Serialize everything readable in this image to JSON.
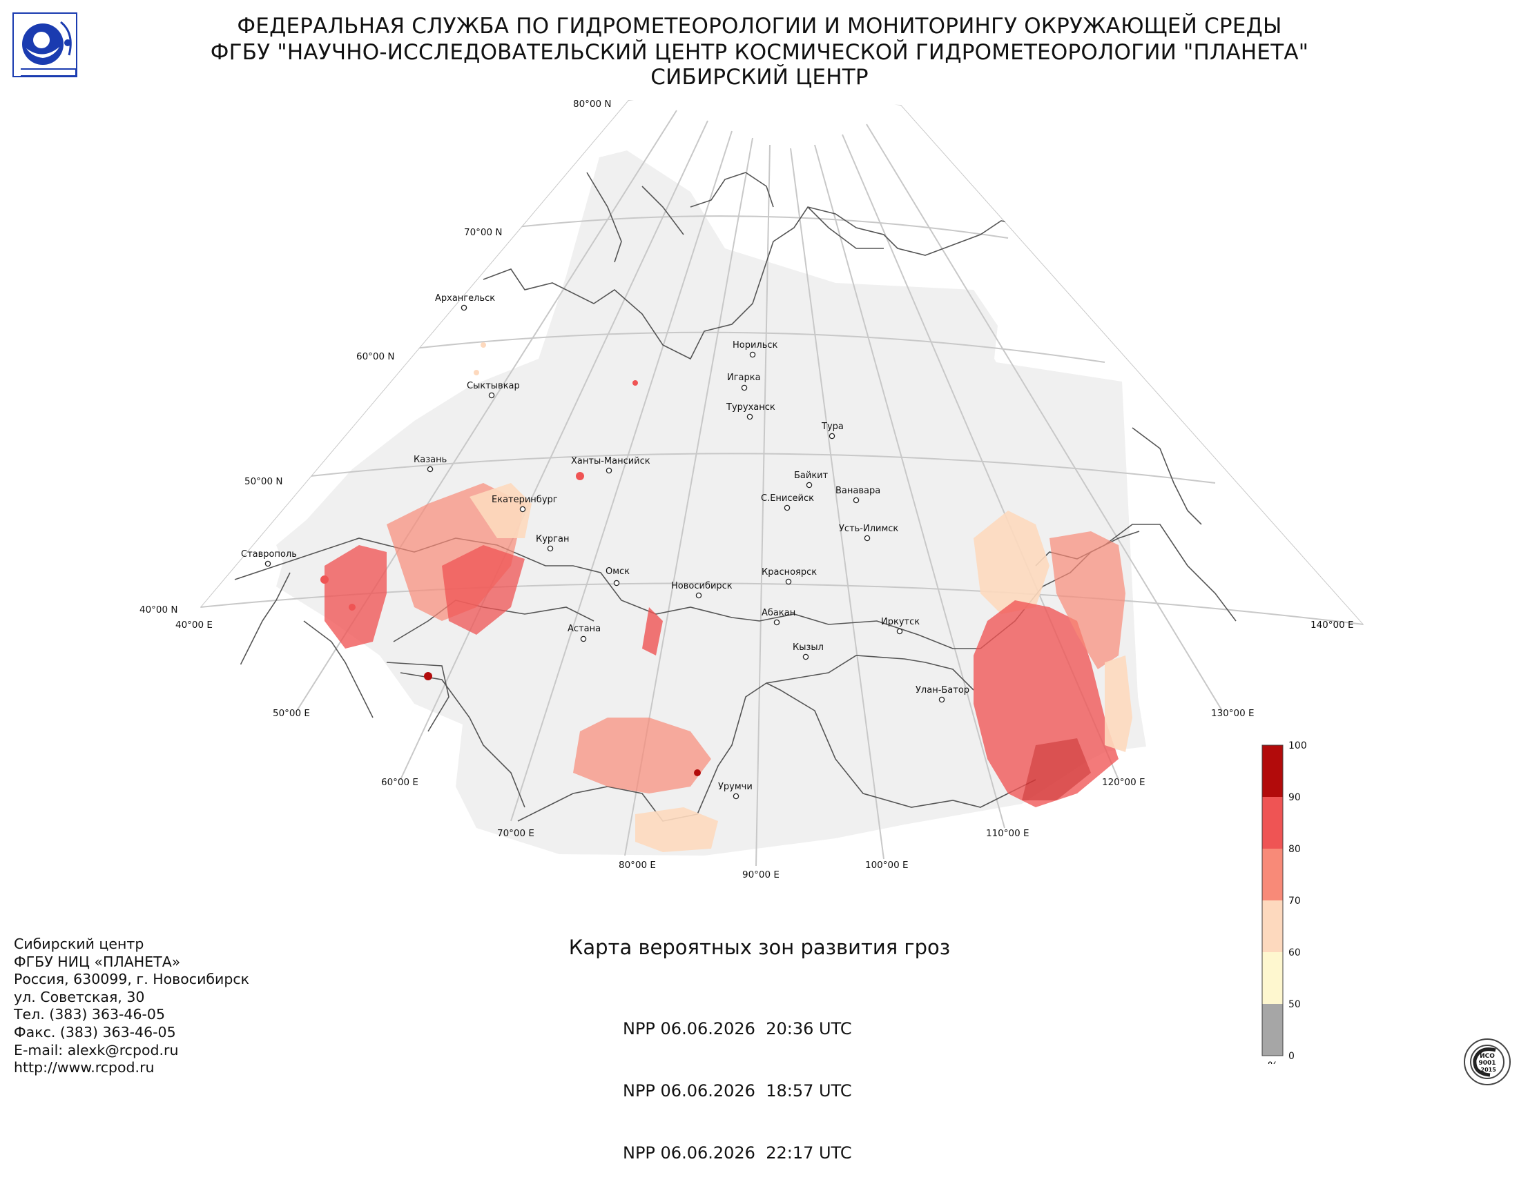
{
  "header": {
    "line1": "ФЕДЕРАЛЬНАЯ СЛУЖБА ПО ГИДРОМЕТЕОРОЛОГИИ И МОНИТОРИНГУ ОКРУЖАЮЩЕЙ СРЕДЫ",
    "line2": "ФГБУ \"НАУЧНО-ИССЛЕДОВАТЕЛЬСКИЙ ЦЕНТР КОСМИЧЕСКОЙ ГИДРОМЕТЕОРОЛОГИИ \"ПЛАНЕТА\"",
    "line3": "СИБИРСКИЙ ЦЕНТР"
  },
  "logo": {
    "icon": "roshydromet-logo",
    "color": "#1a3bb0"
  },
  "map": {
    "latitude_labels": [
      "80°00 N",
      "70°00 N",
      "60°00 N",
      "50°00 N",
      "40°00 N"
    ],
    "longitude_labels": [
      "40°00 E",
      "50°00 E",
      "60°00 E",
      "70°00 E",
      "80°00 E",
      "90°00 E",
      "100°00 E",
      "110°00 E",
      "120°00 E",
      "130°00 E",
      "140°00 E"
    ],
    "cities": [
      {
        "name": "Архангельск"
      },
      {
        "name": "Сыктывкар"
      },
      {
        "name": "Казань"
      },
      {
        "name": "Екатеринбург"
      },
      {
        "name": "Ставрополь"
      },
      {
        "name": "Курган"
      },
      {
        "name": "Ханты-Мансийск"
      },
      {
        "name": "Омск"
      },
      {
        "name": "Астана"
      },
      {
        "name": "Новосибирск"
      },
      {
        "name": "Норильск"
      },
      {
        "name": "Игарка"
      },
      {
        "name": "Туруханск"
      },
      {
        "name": "Тура"
      },
      {
        "name": "Байкит"
      },
      {
        "name": "С.Енисейск"
      },
      {
        "name": "Ванавара"
      },
      {
        "name": "Усть-Илимск"
      },
      {
        "name": "Красноярск"
      },
      {
        "name": "Абакан"
      },
      {
        "name": "Иркутск"
      },
      {
        "name": "Кызыл"
      },
      {
        "name": "Улан-Батор"
      },
      {
        "name": "Урумчи"
      }
    ],
    "colors": {
      "graticule": "#c8c8c8",
      "coverage": "#f0f0f0",
      "borders": "#555555"
    }
  },
  "legend": {
    "unit": "%",
    "ticks": [
      "100",
      "90",
      "80",
      "70",
      "60",
      "50",
      "0"
    ],
    "colors": {
      "90-100": "#b20b0b",
      "80-90": "#ef5454",
      "70-80": "#f88a78",
      "60-70": "#fdd9be",
      "50-60": "#fef7cf",
      "0-50": "#a6a6a6"
    }
  },
  "contact": {
    "line1": "Сибирский центр",
    "line2": "ФГБУ НИЦ «ПЛАНЕТА»",
    "line3": "Россия, 630099, г. Новосибирск",
    "line4": "ул. Советская, 30",
    "line5": "Тел. (383) 363-46-05",
    "line6": "Факс. (383) 363-46-05",
    "line7": "E-mail: alexk@rcpod.ru",
    "line8": "http://www.rcpod.ru"
  },
  "product": {
    "title": "Карта вероятных зон развития гроз",
    "passes": [
      "NPP 06.06.2026  20:36 UTC",
      "NPP 06.06.2026  18:57 UTC",
      "NPP 06.06.2026  22:17 UTC"
    ]
  },
  "certification": {
    "icon": "iso-certification-seal",
    "text": [
      "ИСО",
      "9001",
      "-2015"
    ]
  }
}
